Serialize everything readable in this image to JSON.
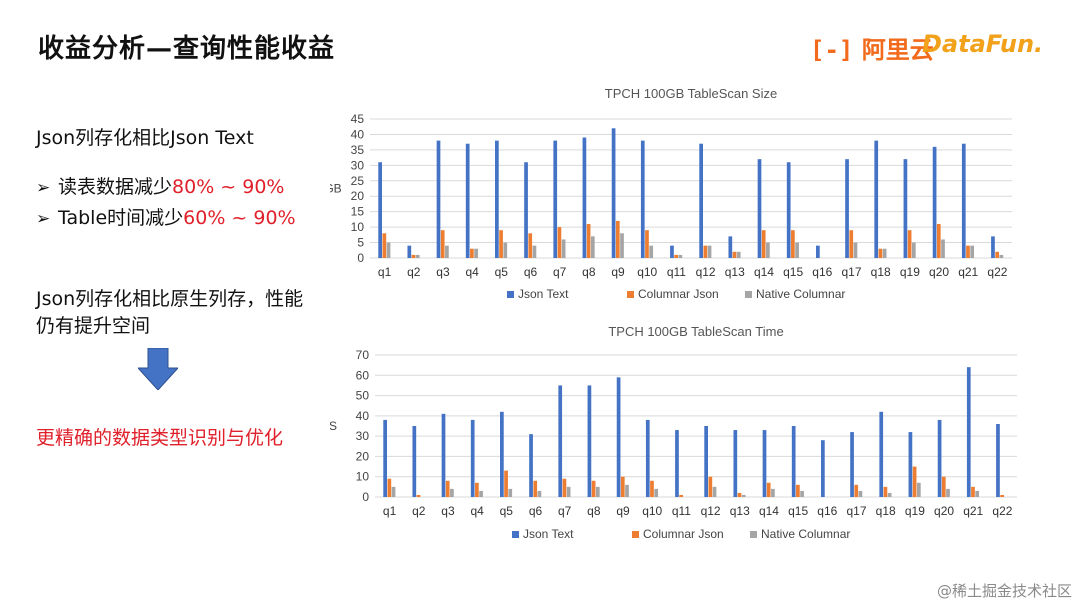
{
  "slide": {
    "title": "收益分析—查询性能收益",
    "logo_aliyun": "阿里云",
    "logo_datafun": "DataFun.",
    "heading1": "Json列存化相比Json Text",
    "bullet1_prefix": "读表数据减少",
    "bullet1_value": "80% ~ 90%",
    "bullet2_prefix": "Table时间减少",
    "bullet2_value": "60% ~ 90%",
    "heading2": "Json列存化相比原生列存，性能仍有提升空间",
    "conclusion": "更精确的数据类型识别与优化",
    "watermark": "@稀土掘金技术社区"
  },
  "colors": {
    "json_text": "#4472C4",
    "columnar_json": "#ED7D31",
    "native_columnar": "#A5A5A5",
    "accent_red": "#E0202A",
    "arrow": "#4472C4"
  },
  "icons": {
    "arrow": "down-arrow-icon",
    "bullet": "chevron-right-icon"
  },
  "chart_data": [
    {
      "type": "bar",
      "title": "TPCH 100GB TableScan Size",
      "ylabel": "GB",
      "xlabel": "",
      "ylim": [
        0,
        45
      ],
      "yticks": [
        0,
        5,
        10,
        15,
        20,
        25,
        30,
        35,
        40,
        45
      ],
      "grid": true,
      "legend": "bottom",
      "categories": [
        "q1",
        "q2",
        "q3",
        "q4",
        "q5",
        "q6",
        "q7",
        "q8",
        "q9",
        "q10",
        "q11",
        "q12",
        "q13",
        "q14",
        "q15",
        "q16",
        "q17",
        "q18",
        "q19",
        "q20",
        "q21",
        "q22"
      ],
      "series": [
        {
          "name": "Json Text",
          "values": [
            31,
            4,
            38,
            37,
            38,
            31,
            38,
            39,
            42,
            38,
            4,
            37,
            7,
            32,
            31,
            4,
            32,
            38,
            32,
            36,
            37,
            7
          ]
        },
        {
          "name": "Columnar Json",
          "values": [
            8,
            1,
            9,
            3,
            9,
            8,
            10,
            11,
            12,
            9,
            1,
            4,
            2,
            9,
            9,
            0,
            9,
            3,
            9,
            11,
            4,
            2
          ]
        },
        {
          "name": "Native Columnar",
          "values": [
            5,
            1,
            4,
            3,
            5,
            4,
            6,
            7,
            8,
            4,
            1,
            4,
            2,
            5,
            5,
            0,
            5,
            3,
            5,
            6,
            4,
            1
          ]
        }
      ]
    },
    {
      "type": "bar",
      "title": "TPCH 100GB TableScan Time",
      "ylabel": "S",
      "xlabel": "",
      "ylim": [
        0,
        70
      ],
      "yticks": [
        0,
        10,
        20,
        30,
        40,
        50,
        60,
        70
      ],
      "grid": true,
      "legend": "bottom",
      "categories": [
        "q1",
        "q2",
        "q3",
        "q4",
        "q5",
        "q6",
        "q7",
        "q8",
        "q9",
        "q10",
        "q11",
        "q12",
        "q13",
        "q14",
        "q15",
        "q16",
        "q17",
        "q18",
        "q19",
        "q20",
        "q21",
        "q22"
      ],
      "series": [
        {
          "name": "Json Text",
          "values": [
            38,
            35,
            41,
            38,
            42,
            31,
            55,
            55,
            59,
            38,
            33,
            35,
            33,
            33,
            35,
            28,
            32,
            42,
            32,
            38,
            64,
            36
          ]
        },
        {
          "name": "Columnar Json",
          "values": [
            9,
            1,
            8,
            7,
            13,
            8,
            9,
            8,
            10,
            8,
            1,
            10,
            2,
            7,
            6,
            0,
            6,
            5,
            15,
            10,
            5,
            1
          ]
        },
        {
          "name": "Native Columnar",
          "values": [
            5,
            0,
            4,
            3,
            4,
            3,
            5,
            5,
            6,
            4,
            0,
            5,
            1,
            4,
            3,
            0,
            3,
            2,
            7,
            4,
            3,
            0
          ]
        }
      ]
    }
  ]
}
